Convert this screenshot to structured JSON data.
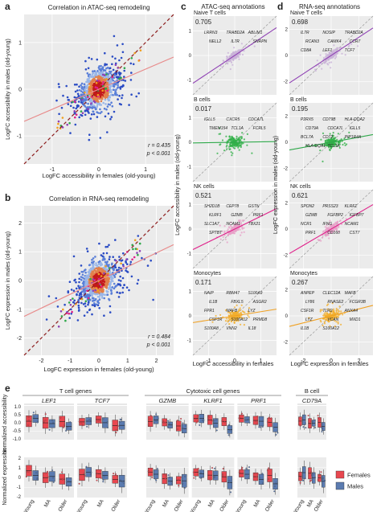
{
  "panel_letters": [
    "a",
    "b",
    "c",
    "d",
    "e"
  ],
  "panel_a": {
    "title": "Correlation in ATAC-seq remodeling",
    "xlabel": "LogFC accessibility in females (old-young)",
    "ylabel": "LogFC accessibility in males (old-young)",
    "xticks": [
      "-1",
      "0",
      "1"
    ],
    "yticks": [
      "-1",
      "0",
      "1"
    ],
    "stat_r": "r = 0.435",
    "stat_p": "p < 0.001"
  },
  "panel_b": {
    "title": "Correlation in RNA-seq remodeling",
    "xlabel": "LogFC expression in females (old-young)",
    "ylabel": "LogFC expression in males (old-young)",
    "xticks": [
      "-2",
      "-1",
      "0",
      "1",
      "2"
    ],
    "yticks": [
      "-2",
      "-1",
      "0",
      "1",
      "2"
    ],
    "stat_r": "r = 0.484",
    "stat_p": "p < 0.001"
  },
  "panel_c": {
    "title": "ATAC-seq annotations",
    "xlabel": "LogFC accessibility in females",
    "ylabel": "LogFC accessibility in males (old-young)",
    "xticks": [
      "-1",
      "0",
      "1"
    ],
    "yticks": [
      "-1",
      "0",
      "1"
    ],
    "facets": [
      {
        "name": "Naive T cells",
        "value": "0.705",
        "color": "#8e3fb3",
        "dot": "#c9b3d8",
        "genes": [
          "LRRN3",
          "TRABD2A",
          "ABLIM1",
          "NELL2",
          "IL7R",
          "SNRPN"
        ]
      },
      {
        "name": "B cells",
        "value": "0.017",
        "color": "#2ea84a",
        "dot": "#33b24a",
        "genes": [
          "IGLL5",
          "CXCR5",
          "CDCA7L",
          "TMEM154",
          "TCL1A",
          "FCRL5"
        ]
      },
      {
        "name": "NK cells",
        "value": "0.521",
        "color": "#e0208a",
        "dot": "#e7a0c8",
        "genes": [
          "SH2D1B",
          "CEP78",
          "GSTN",
          "KLRF1",
          "GZMB",
          "PRF1",
          "SLC1A7",
          "NCAM1",
          "TBX21",
          "SPTBT"
        ]
      },
      {
        "name": "Monocytes",
        "value": "0.171",
        "color": "#f0a020",
        "dot": "#f3b030",
        "genes": [
          "NAIP",
          "RBM47",
          "S100A9",
          "IL1B",
          "FBXL5",
          "ASGR2",
          "FPR1",
          "MAFB",
          "LYZ",
          "CSF1R",
          "S100A12",
          "PRMD8",
          "S100A8",
          "VNN2",
          "IL18"
        ]
      }
    ]
  },
  "panel_d": {
    "title": "RNA-seq annotations",
    "xlabel": "LogFC expression in females",
    "ylabel": "LogFC expression in males (old-young)",
    "xticks": [
      "-2",
      "0",
      "2"
    ],
    "yticks": [
      "-2",
      "0",
      "2"
    ],
    "facets": [
      {
        "name": "Naive T cells",
        "value": "0.698",
        "color": "#8e3fb3",
        "dot": "#c9b3d8",
        "genes": [
          "IL7R",
          "NOSIP",
          "TRABD2A",
          "RCAN3",
          "CAMK4",
          "CCR7",
          "CD8A",
          "LEF1",
          "TCF7"
        ]
      },
      {
        "name": "B cells",
        "value": "0.195",
        "color": "#2ea84a",
        "dot": "#33b24a",
        "genes": [
          "P2RX5",
          "CD79B",
          "HLA-DQA2",
          "CD79A",
          "CDCA7L",
          "IGLL5",
          "BCL7A",
          "CD72",
          "PIP1R4A",
          "HLA-DQA1",
          "TCL1A"
        ]
      },
      {
        "name": "NK cells",
        "value": "0.621",
        "color": "#e0208a",
        "dot": "#e7a0c8",
        "genes": [
          "SPON2",
          "PRSS23",
          "KLRF1",
          "GZMB",
          "FGFBP2",
          "IGFBP7",
          "NCR1",
          "IFNG",
          "NCAM1",
          "PRF1",
          "CD160",
          "CST7"
        ]
      },
      {
        "name": "Monocytes",
        "value": "0.267",
        "color": "#f0a020",
        "dot": "#f3b030",
        "genes": [
          "ANPEP",
          "CLEC12A",
          "MAFB",
          "LY86",
          "RNASE2",
          "FCGR3B",
          "CSF1R",
          "TLR2",
          "ANXA4",
          "LYZ",
          "VCAN",
          "MXD1",
          "IL1B",
          "S100A12"
        ]
      }
    ]
  },
  "panel_e": {
    "groups": [
      {
        "title": "T cell genes",
        "genes": [
          "LEF1",
          "TCF7"
        ]
      },
      {
        "title": "Cytotoxic cell genes",
        "genes": [
          "GZMB",
          "KLRF1",
          "PRF1"
        ]
      },
      {
        "title": "B cell",
        "genes": [
          "CD79A"
        ]
      }
    ],
    "row_labels": [
      "Normalized accessibility",
      "Normalized expression"
    ],
    "yticks_top": [
      "1.0",
      "0.5",
      "0.0",
      "-0.5",
      "-1.0"
    ],
    "yticks_bottom": [
      "2",
      "1",
      "0",
      "-1",
      "-2"
    ],
    "categories": [
      "Young",
      "MA",
      "Older"
    ],
    "legend": [
      {
        "label": "Females",
        "color": "#e8474f"
      },
      {
        "label": "Males",
        "color": "#5b7bb0"
      }
    ]
  },
  "chart_data": [
    {
      "type": "scatter",
      "title": "Correlation in ATAC-seq remodeling",
      "xlabel": "LogFC accessibility in females (old-young)",
      "ylabel": "LogFC accessibility in males (old-young)",
      "xlim": [
        -1.6,
        1.6
      ],
      "ylim": [
        -1.6,
        1.6
      ],
      "r": 0.435,
      "p": "< 0.001",
      "fit": {
        "slope": 0.43,
        "intercept": 0
      }
    },
    {
      "type": "scatter",
      "title": "Correlation in RNA-seq remodeling",
      "xlabel": "LogFC expression in females (old-young)",
      "ylabel": "LogFC expression in males (old-young)",
      "xlim": [
        -2.6,
        2.6
      ],
      "ylim": [
        -2.6,
        2.6
      ],
      "r": 0.484,
      "p": "< 0.001",
      "fit": {
        "slope": 0.48,
        "intercept": 0
      }
    },
    {
      "type": "scatter",
      "title": "ATAC-seq annotations",
      "facets": [
        "Naive T cells",
        "B cells",
        "NK cells",
        "Monocytes"
      ],
      "r": [
        0.705,
        0.017,
        0.521,
        0.171
      ]
    },
    {
      "type": "scatter",
      "title": "RNA-seq annotations",
      "facets": [
        "Naive T cells",
        "B cells",
        "NK cells",
        "Monocytes"
      ],
      "r": [
        0.698,
        0.195,
        0.621,
        0.267
      ]
    },
    {
      "type": "box",
      "categories": [
        "Young",
        "MA",
        "Older"
      ],
      "series": [
        "Females",
        "Males"
      ],
      "genes": [
        "LEF1",
        "TCF7",
        "GZMB",
        "KLRF1",
        "PRF1",
        "CD79A"
      ]
    }
  ]
}
